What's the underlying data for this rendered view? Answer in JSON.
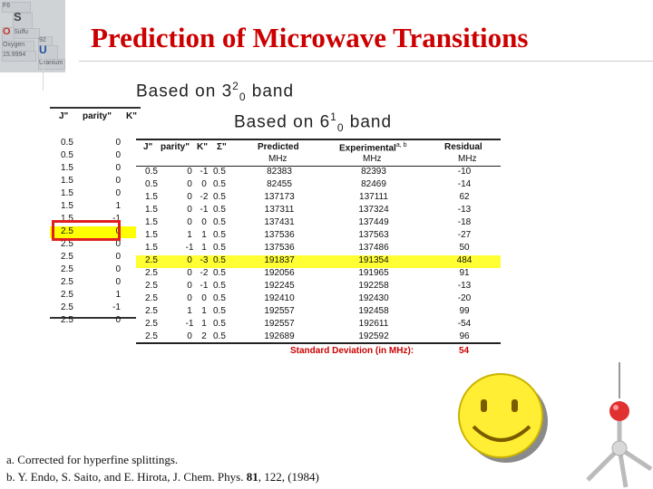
{
  "logo": {
    "cells": [
      {
        "text": "F6",
        "cls": ""
      },
      {
        "text": "S",
        "cls": "big"
      },
      {
        "text": "Sulfu",
        "cls": ""
      },
      {
        "text": "O",
        "cls": "red"
      },
      {
        "text": "Oxygen",
        "cls": ""
      },
      {
        "text": "15.9994",
        "cls": ""
      },
      {
        "text": "92",
        "cls": ""
      },
      {
        "text": "U",
        "cls": "blue"
      },
      {
        "text": "Uranium",
        "cls": ""
      }
    ],
    "colors": {
      "background": "#d0d3d6",
      "oxygen": "#c0392b",
      "uranium": "#1f4f9f"
    }
  },
  "title": "Prediction of Microwave Transitions",
  "band_back": {
    "prefix": "Based on 3",
    "sup": "2",
    "sub": "0",
    "suffix": " band"
  },
  "band_front": {
    "prefix": "Based on 6",
    "sup": "1",
    "sub": "0",
    "suffix": " band"
  },
  "back_table": {
    "headers": [
      "J\"",
      "parity\"",
      "K\""
    ],
    "rows": [
      [
        "0.5",
        "0"
      ],
      [
        "0.5",
        "0"
      ],
      [
        "1.5",
        "0"
      ],
      [
        "1.5",
        "0"
      ],
      [
        "1.5",
        "0"
      ],
      [
        "1.5",
        "1"
      ],
      [
        "1.5",
        "-1"
      ],
      [
        "2.5",
        "0"
      ],
      [
        "2.5",
        "0"
      ],
      [
        "2.5",
        "0"
      ],
      [
        "2.5",
        "0"
      ],
      [
        "2.5",
        "0"
      ],
      [
        "2.5",
        "1"
      ],
      [
        "2.5",
        "-1"
      ],
      [
        "2.5",
        "0"
      ]
    ],
    "highlight_row": 7
  },
  "front_table": {
    "headers": {
      "j": "J\"",
      "parity": "parity\"",
      "k": "K\"",
      "sigma": "Σ\"",
      "predicted": "Predicted",
      "experimental": "Experimental",
      "experimental_sup": "a, b",
      "residual": "Residual"
    },
    "units": {
      "predicted": "MHz",
      "experimental": "MHz",
      "residual": "MHz"
    },
    "rows": [
      [
        "0.5",
        "0",
        "-1",
        "0.5",
        "82383",
        "82393",
        "-10"
      ],
      [
        "0.5",
        "0",
        "0",
        "0.5",
        "82455",
        "82469",
        "-14"
      ],
      [
        "1.5",
        "0",
        "-2",
        "0.5",
        "137173",
        "137111",
        "62"
      ],
      [
        "1.5",
        "0",
        "-1",
        "0.5",
        "137311",
        "137324",
        "-13"
      ],
      [
        "1.5",
        "0",
        "0",
        "0.5",
        "137431",
        "137449",
        "-18"
      ],
      [
        "1.5",
        "1",
        "1",
        "0.5",
        "137536",
        "137563",
        "-27"
      ],
      [
        "1.5",
        "-1",
        "1",
        "0.5",
        "137536",
        "137486",
        "50"
      ],
      [
        "2.5",
        "0",
        "-3",
        "0.5",
        "191837",
        "191354",
        "484"
      ],
      [
        "2.5",
        "0",
        "-2",
        "0.5",
        "192056",
        "191965",
        "91"
      ],
      [
        "2.5",
        "0",
        "-1",
        "0.5",
        "192245",
        "192258",
        "-13"
      ],
      [
        "2.5",
        "0",
        "0",
        "0.5",
        "192410",
        "192430",
        "-20"
      ],
      [
        "2.5",
        "1",
        "1",
        "0.5",
        "192557",
        "192458",
        "99"
      ],
      [
        "2.5",
        "-1",
        "1",
        "0.5",
        "192557",
        "192611",
        "-54"
      ],
      [
        "2.5",
        "0",
        "2",
        "0.5",
        "192689",
        "192592",
        "96"
      ]
    ],
    "highlight_row": 7,
    "highlight_color": "#ffff33",
    "std_label": "Standard Deviation (in MHz):",
    "std_value": "54",
    "std_color": "#cc0000"
  },
  "footnotes": {
    "a": "a. Corrected for hyperfine splittings.",
    "b_prefix": "b. Y. Endo, S. Saito, and E. Hirota, J. Chem. Phys. ",
    "b_volume": "81",
    "b_suffix": ", 122, (1984)"
  },
  "decor": {
    "smiley": {
      "icon": "smiley-face-icon",
      "face_color": "#ffee33"
    },
    "molecule": {
      "icon": "molecule-model-icon",
      "atom_color": "#e03030"
    }
  }
}
